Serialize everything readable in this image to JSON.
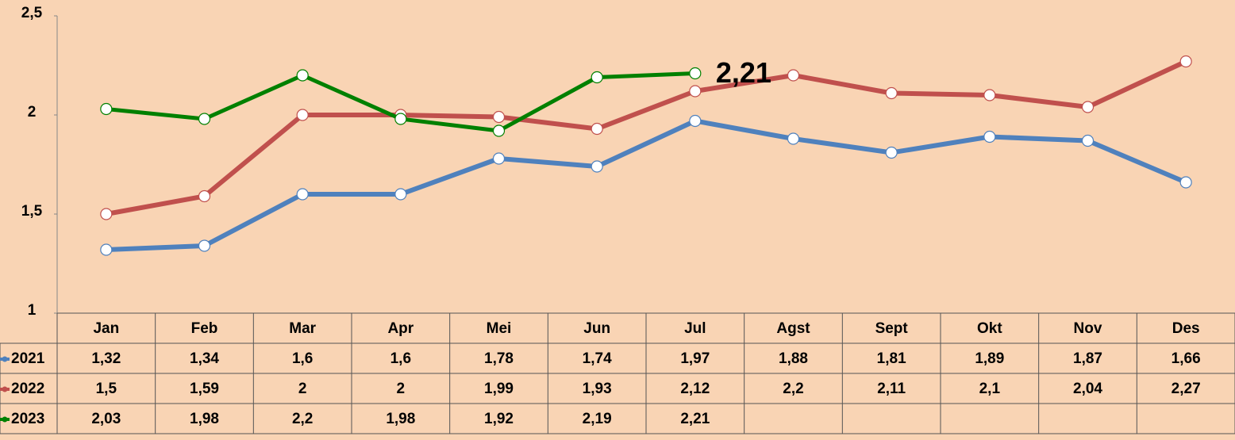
{
  "chart_data": {
    "type": "line",
    "categories": [
      "Jan",
      "Feb",
      "Mar",
      "Apr",
      "Mei",
      "Jun",
      "Jul",
      "Agst",
      "Sept",
      "Okt",
      "Nov",
      "Des"
    ],
    "series": [
      {
        "name": "2021",
        "color": "#4f81bd",
        "values": [
          1.32,
          1.34,
          1.6,
          1.6,
          1.78,
          1.74,
          1.97,
          1.88,
          1.81,
          1.89,
          1.87,
          1.66
        ],
        "value_labels": [
          "1,32",
          "1,34",
          "1,6",
          "1,6",
          "1,78",
          "1,74",
          "1,97",
          "1,88",
          "1,81",
          "1,89",
          "1,87",
          "1,66"
        ]
      },
      {
        "name": "2022",
        "color": "#c0504d",
        "values": [
          1.5,
          1.59,
          2,
          2,
          1.99,
          1.93,
          2.12,
          2.2,
          2.11,
          2.1,
          2.04,
          2.27
        ],
        "value_labels": [
          "1,5",
          "1,59",
          "2",
          "2",
          "1,99",
          "1,93",
          "2,12",
          "2,2",
          "2,11",
          "2,1",
          "2,04",
          "2,27"
        ]
      },
      {
        "name": "2023",
        "color": "#008000",
        "values": [
          2.03,
          1.98,
          2.2,
          1.98,
          1.92,
          2.19,
          2.21,
          null,
          null,
          null,
          null,
          null
        ],
        "value_labels": [
          "2,03",
          "1,98",
          "2,2",
          "1,98",
          "1,92",
          "2,19",
          "2,21",
          null,
          null,
          null,
          null,
          null
        ]
      }
    ],
    "ylim": [
      1,
      2.5
    ],
    "yticks": [
      1,
      {
        "value": 1.5,
        "label": "1,5"
      },
      2,
      {
        "value": 2.5,
        "label": "2,5"
      }
    ],
    "grid": false,
    "data_table": true,
    "annotation": {
      "series": 2,
      "index": 6
    }
  }
}
